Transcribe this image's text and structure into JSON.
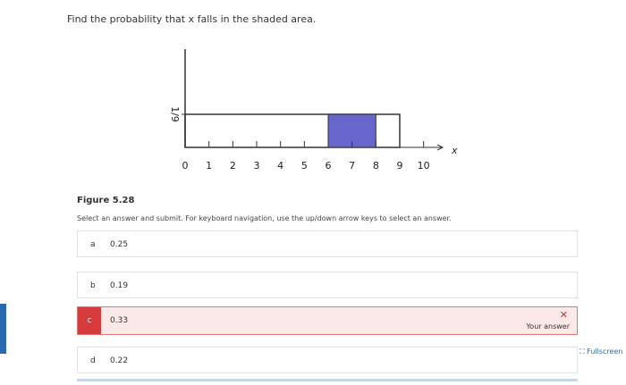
{
  "question": "Find the probability that x falls in the shaded area.",
  "chart_data": {
    "type": "uniform",
    "xlabel": "x",
    "xlim": [
      0,
      10.8
    ],
    "ylim": [
      0,
      0.33
    ],
    "xticks": [
      0,
      1,
      2,
      3,
      4,
      5,
      6,
      7,
      8,
      9,
      10
    ],
    "yticks": [
      {
        "value": 0.1111,
        "label": "1/9"
      }
    ],
    "support": [
      0,
      9
    ],
    "density": 0.1111,
    "shaded": [
      6,
      8
    ],
    "shade_color": "#6666cc"
  },
  "figure_caption": "Figure 5.28",
  "instructions": "Select an answer and submit. For keyboard navigation, use the up/down arrow keys to select an answer.",
  "options": [
    {
      "letter": "a",
      "text": "0.25"
    },
    {
      "letter": "b",
      "text": "0.19"
    },
    {
      "letter": "c",
      "text": "0.33"
    },
    {
      "letter": "d",
      "text": "0.22"
    }
  ],
  "feedback": "Your answer",
  "fullscreen": "Fullscreen"
}
